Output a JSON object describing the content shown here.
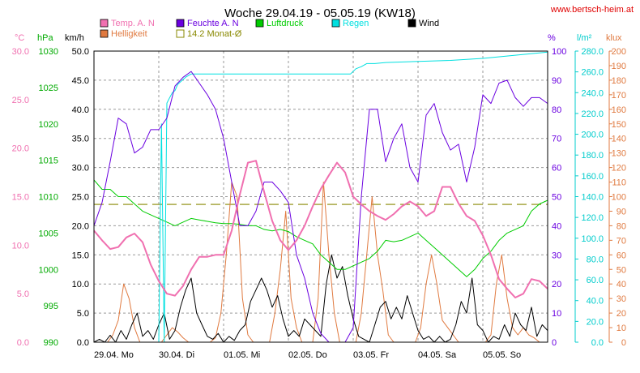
{
  "chart_data": {
    "type": "line",
    "title": "Woche 29.04.19 - 05.05.19 (KW18)",
    "source": "www.bertsch-heim.at",
    "legend": [
      {
        "label": "Temp. A. N",
        "color": "#f070b0",
        "shape": "filled"
      },
      {
        "label": "Feuchte A. N",
        "color": "#6a00e0",
        "shape": "filled"
      },
      {
        "label": "Luftdruck",
        "color": "#00cc00",
        "shape": "filled"
      },
      {
        "label": "Regen",
        "color": "#00e0e0",
        "shape": "filled"
      },
      {
        "label": "Wind",
        "color": "#000000",
        "shape": "filled"
      },
      {
        "label": "Helligkeit",
        "color": "#e07a40",
        "shape": "filled"
      },
      {
        "label": "14.2 Monat-Ø",
        "color": "#888800",
        "shape": "hollow"
      }
    ],
    "axes": {
      "temp": {
        "unit": "°C",
        "color": "#f070b0",
        "min": 0,
        "max": 30,
        "ticks": [
          "30.0",
          "25.0",
          "20.0",
          "15.0",
          "10.0",
          "5.0",
          "0.0"
        ]
      },
      "pressure": {
        "unit": "hPa",
        "color": "#00aa00",
        "min": 990,
        "max": 1030,
        "ticks": [
          "1030",
          "1025",
          "1020",
          "1015",
          "1010",
          "1005",
          "1000",
          "995",
          "990"
        ]
      },
      "wind": {
        "unit": "km/h",
        "color": "#000000",
        "min": 0,
        "max": 50,
        "ticks": [
          "50.0",
          "45.0",
          "40.0",
          "35.0",
          "30.0",
          "25.0",
          "20.0",
          "15.0",
          "10.0",
          "5.0",
          "0.0"
        ]
      },
      "humidity": {
        "unit": "%",
        "color": "#6a00e0",
        "min": 0,
        "max": 100,
        "ticks": [
          "100",
          "90",
          "80",
          "70",
          "60",
          "50",
          "40",
          "30",
          "20",
          "10",
          "0"
        ]
      },
      "rain": {
        "unit": "l/m²",
        "color": "#00cccc",
        "min": 0,
        "max": 280,
        "ticks": [
          "280.0",
          "260.0",
          "240.0",
          "220.0",
          "200.0",
          "180.0",
          "160.0",
          "140.0",
          "120.0",
          "100.0",
          "80.0",
          "60.0",
          "40.0",
          "20.0",
          "0.0"
        ]
      },
      "lux": {
        "unit": "klux",
        "color": "#e07a40",
        "min": 0,
        "max": 200,
        "ticks": [
          "200",
          "190",
          "180",
          "170",
          "160",
          "150",
          "140",
          "130",
          "120",
          "110",
          "100",
          "90",
          "80",
          "70",
          "60",
          "50",
          "40",
          "30",
          "20",
          "10",
          "0"
        ]
      }
    },
    "x_days": [
      "29.04.  Mo",
      "30.04.  Di",
      "01.05.  Mi",
      "02.05.  Do",
      "03.05.  Fr",
      "04.05.  Sa",
      "05.05.  So"
    ],
    "x_unit": "hours since 29.04. 00:00",
    "x_max": 168,
    "monthly_avg_temp": 14.2,
    "series": [
      {
        "name": "Temp. A. N",
        "axis": "temp",
        "color": "#f070b0",
        "width": 2,
        "x": [
          0,
          3,
          6,
          9,
          12,
          15,
          18,
          21,
          24,
          27,
          30,
          33,
          36,
          39,
          42,
          45,
          48,
          51,
          54,
          57,
          60,
          63,
          66,
          69,
          72,
          75,
          78,
          81,
          84,
          87,
          90,
          93,
          96,
          99,
          102,
          105,
          108,
          111,
          114,
          117,
          120,
          123,
          126,
          129,
          132,
          135,
          138,
          141,
          144,
          147,
          150,
          153,
          156,
          159,
          162,
          165,
          168
        ],
        "y": [
          11.5,
          10.5,
          9.6,
          9.8,
          10.8,
          11.2,
          10.3,
          8.0,
          6.3,
          5.0,
          4.8,
          5.8,
          7.5,
          8.8,
          8.8,
          9.0,
          9.0,
          11.5,
          15.2,
          18.5,
          18.7,
          15.5,
          12.5,
          10.5,
          9.5,
          10.5,
          12.0,
          14.0,
          15.8,
          17.2,
          18.5,
          17.5,
          15.0,
          14.2,
          13.5,
          13.0,
          12.6,
          13.2,
          14.0,
          14.5,
          14.0,
          13.0,
          13.5,
          16.0,
          16.0,
          14.3,
          13.0,
          12.5,
          11.0,
          9.0,
          6.5,
          5.5,
          4.6,
          5.0,
          6.5,
          6.3,
          5.5
        ]
      },
      {
        "name": "Feuchte A. N",
        "axis": "humidity",
        "color": "#6a00e0",
        "width": 1,
        "x": [
          0,
          3,
          6,
          9,
          12,
          15,
          18,
          21,
          24,
          27,
          30,
          33,
          36,
          39,
          42,
          45,
          48,
          51,
          54,
          57,
          60,
          63,
          66,
          69,
          72,
          75,
          78,
          81,
          84,
          87,
          90,
          93,
          96,
          99,
          102,
          105,
          108,
          111,
          114,
          117,
          120,
          123,
          126,
          129,
          132,
          135,
          138,
          141,
          144,
          147,
          150,
          153,
          156,
          159,
          162,
          165,
          168
        ],
        "y": [
          40,
          48,
          62,
          77,
          75,
          65,
          67,
          73,
          73,
          77,
          88,
          91,
          93,
          89,
          85,
          80,
          70,
          55,
          40,
          40,
          45,
          55,
          55,
          52,
          48,
          30,
          22,
          10,
          3,
          0,
          0,
          0,
          5,
          50,
          80,
          80,
          62,
          70,
          75,
          60,
          55,
          78,
          82,
          72,
          66,
          68,
          55,
          67,
          85,
          82,
          89,
          90,
          84,
          81,
          84,
          84,
          82
        ]
      },
      {
        "name": "Luftdruck",
        "axis": "pressure",
        "color": "#00cc00",
        "width": 1,
        "x": [
          0,
          3,
          6,
          9,
          12,
          15,
          18,
          21,
          24,
          27,
          30,
          33,
          36,
          39,
          42,
          45,
          48,
          51,
          54,
          57,
          60,
          63,
          66,
          69,
          72,
          75,
          78,
          81,
          84,
          87,
          90,
          93,
          96,
          99,
          102,
          105,
          108,
          111,
          114,
          117,
          120,
          123,
          126,
          129,
          132,
          135,
          138,
          141,
          144,
          147,
          150,
          153,
          156,
          159,
          162,
          165,
          168
        ],
        "y": [
          1012.3,
          1011.0,
          1011.0,
          1010.0,
          1010.0,
          1009.0,
          1008.0,
          1007.5,
          1007.0,
          1006.5,
          1006.0,
          1006.5,
          1007.0,
          1006.8,
          1006.6,
          1006.4,
          1006.3,
          1006.3,
          1006.2,
          1006.0,
          1006.0,
          1005.5,
          1005.3,
          1005.5,
          1005.2,
          1004.5,
          1004.0,
          1003.5,
          1002.0,
          1001.0,
          1000.0,
          1000.0,
          1000.5,
          1001.0,
          1001.5,
          1002.5,
          1004.0,
          1003.8,
          1004.0,
          1004.5,
          1005.0,
          1004.0,
          1003.0,
          1002.0,
          1001.0,
          1000.0,
          999.0,
          1000.0,
          1001.5,
          1002.5,
          1004.0,
          1005.0,
          1005.5,
          1006.0,
          1008.0,
          1009.0,
          1009.5
        ]
      },
      {
        "name": "Regen",
        "axis": "rain",
        "color": "#00e0e0",
        "width": 1,
        "x": [
          0,
          23,
          24,
          25,
          26,
          27,
          28,
          29,
          30,
          31,
          34,
          36,
          48,
          60,
          72,
          84,
          95,
          97,
          99,
          101,
          104,
          108,
          120,
          132,
          144,
          156,
          168
        ],
        "y": [
          0,
          0,
          0,
          210,
          0,
          230,
          235,
          240,
          242,
          248,
          255,
          258,
          258,
          258,
          258,
          258,
          258,
          263,
          265,
          268,
          268,
          269,
          270,
          271,
          273,
          276,
          279
        ]
      },
      {
        "name": "Wind",
        "axis": "wind",
        "color": "#000000",
        "width": 1,
        "x": [
          0,
          2,
          4,
          6,
          8,
          10,
          12,
          14,
          16,
          18,
          20,
          22,
          24,
          26,
          28,
          30,
          32,
          34,
          36,
          38,
          40,
          42,
          44,
          46,
          48,
          50,
          52,
          54,
          56,
          58,
          60,
          62,
          64,
          66,
          68,
          70,
          72,
          74,
          76,
          78,
          80,
          82,
          84,
          86,
          88,
          90,
          92,
          94,
          96,
          98,
          100,
          102,
          104,
          106,
          108,
          110,
          112,
          114,
          116,
          118,
          120,
          122,
          124,
          126,
          128,
          130,
          132,
          134,
          136,
          138,
          140,
          142,
          144,
          146,
          148,
          150,
          152,
          154,
          156,
          158,
          160,
          162,
          164,
          166,
          168
        ],
        "y": [
          0,
          0.5,
          0,
          1.2,
          0,
          2,
          0.5,
          3,
          5,
          1,
          2,
          0.5,
          3,
          5,
          0.5,
          2,
          6,
          9,
          11,
          5,
          3,
          1,
          0.5,
          1.5,
          0,
          1,
          0.3,
          2,
          3,
          7,
          9,
          11,
          9,
          6,
          8,
          4,
          1,
          2,
          1,
          4,
          3,
          2,
          1,
          10,
          15,
          11,
          13,
          8,
          4,
          1,
          0.5,
          0,
          3,
          6,
          7,
          4,
          6,
          4,
          8,
          5,
          2,
          0.5,
          1,
          0,
          1,
          0,
          0.5,
          3,
          7,
          5,
          11,
          3,
          2,
          0,
          1,
          0.5,
          3,
          1,
          5,
          3,
          2,
          6,
          1,
          3,
          2
        ]
      },
      {
        "name": "Helligkeit",
        "axis": "lux",
        "color": "#e07a40",
        "width": 1,
        "x": [
          0,
          3,
          5,
          7,
          9,
          11,
          13,
          15,
          17,
          19,
          21,
          23,
          25,
          27,
          29,
          31,
          33,
          35,
          37,
          39,
          41,
          43,
          45,
          47,
          49,
          51,
          53,
          55,
          57,
          59,
          61,
          63,
          65,
          67,
          69,
          71,
          73,
          75,
          77,
          79,
          81,
          83,
          85,
          87,
          89,
          91,
          93,
          95,
          97,
          99,
          101,
          103,
          105,
          107,
          109,
          111,
          113,
          115,
          117,
          119,
          121,
          123,
          125,
          127,
          129,
          131,
          133,
          135,
          137,
          139,
          141,
          143,
          145,
          147,
          149,
          151,
          153,
          155,
          157,
          159,
          161,
          163,
          165,
          167,
          168
        ],
        "y": [
          0,
          0,
          0,
          5,
          15,
          40,
          30,
          10,
          0,
          0,
          0,
          0,
          0,
          5,
          10,
          7,
          3,
          0,
          0,
          0,
          0,
          0,
          3,
          20,
          60,
          110,
          100,
          30,
          5,
          0,
          0,
          0,
          0,
          20,
          50,
          90,
          30,
          10,
          0,
          0,
          0,
          30,
          110,
          60,
          20,
          0,
          0,
          0,
          0,
          20,
          60,
          100,
          60,
          35,
          5,
          0,
          0,
          0,
          0,
          0,
          10,
          40,
          60,
          40,
          15,
          10,
          5,
          0,
          0,
          0,
          0,
          0,
          0,
          5,
          40,
          60,
          30,
          10,
          5,
          10,
          5,
          3,
          0,
          0,
          0
        ]
      }
    ]
  }
}
